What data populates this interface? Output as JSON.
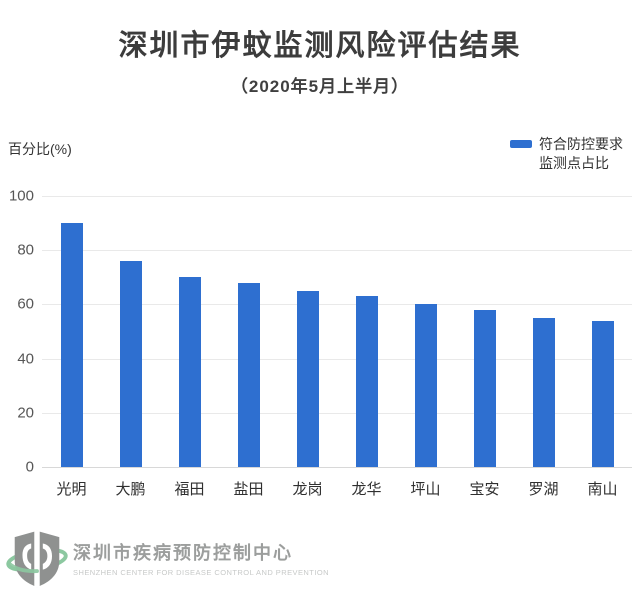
{
  "header": {
    "title": "深圳市伊蚊监测风险评估结果",
    "subtitle": "（2020年5月上半月）"
  },
  "axis": {
    "ylabel": "百分比(%)"
  },
  "legend": {
    "line1": "符合防控要求",
    "line2": "监测点占比"
  },
  "chart_data": {
    "type": "bar",
    "title": "深圳市伊蚊监测风险评估结果",
    "subtitle": "（2020年5月上半月）",
    "ylabel": "百分比(%)",
    "legend": [
      "符合防控要求监测点占比"
    ],
    "legend_position": "top-right",
    "categories": [
      "光明",
      "大鹏",
      "福田",
      "盐田",
      "龙岗",
      "龙华",
      "坪山",
      "宝安",
      "罗湖",
      "南山"
    ],
    "values": [
      90,
      76,
      70,
      68,
      65,
      63,
      60,
      58,
      55,
      54
    ],
    "ylim": [
      0,
      100
    ],
    "ytick_interval": 20,
    "grid": true,
    "bar_color": "#2e6fd0"
  },
  "footer": {
    "org_name_cn": "深圳市疾病预防控制中心",
    "org_name_en": "SHENZHEN CENTER FOR DISEASE CONTROL AND PREVENTION"
  },
  "colors": {
    "bar": "#2e6fd0",
    "grid": "#e9e9e9",
    "axis_line": "#d8d8d8",
    "title_text": "#3c3c3c",
    "tick_text": "#565656",
    "logo_gray": "#8f9190",
    "logo_green": "#8cc8a0"
  }
}
